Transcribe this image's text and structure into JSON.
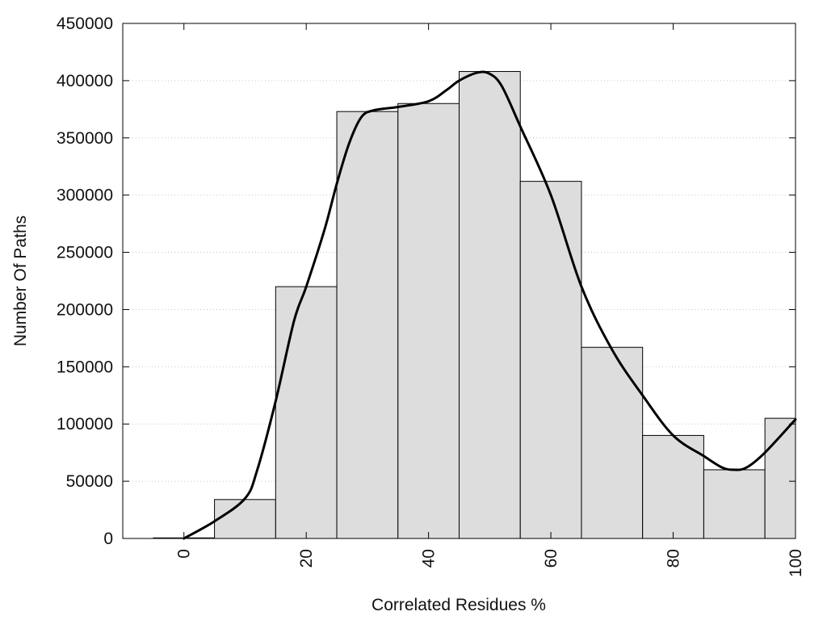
{
  "chart_data": {
    "type": "bar",
    "xlabel": "Correlated Residues %",
    "ylabel": "Number Of Paths",
    "xlim": [
      -10,
      100
    ],
    "ylim": [
      0,
      450000
    ],
    "grid": true,
    "x_ticks": [
      0,
      20,
      40,
      60,
      80,
      100
    ],
    "y_ticks": [
      0,
      50000,
      100000,
      150000,
      200000,
      250000,
      300000,
      350000,
      400000,
      450000
    ],
    "bars": [
      {
        "x0": -5,
        "x1": 5,
        "value": 500
      },
      {
        "x0": 5,
        "x1": 15,
        "value": 34000
      },
      {
        "x0": 15,
        "x1": 25,
        "value": 220000
      },
      {
        "x0": 25,
        "x1": 35,
        "value": 373000
      },
      {
        "x0": 35,
        "x1": 45,
        "value": 380000
      },
      {
        "x0": 45,
        "x1": 55,
        "value": 408000
      },
      {
        "x0": 55,
        "x1": 65,
        "value": 312000
      },
      {
        "x0": 65,
        "x1": 75,
        "value": 167000
      },
      {
        "x0": 75,
        "x1": 85,
        "value": 90000
      },
      {
        "x0": 85,
        "x1": 95,
        "value": 60000
      },
      {
        "x0": 95,
        "x1": 100,
        "value": 105000
      }
    ],
    "curve": {
      "x": [
        0,
        5,
        10,
        12,
        15,
        18,
        20,
        23,
        25,
        27,
        29,
        31,
        35,
        40,
        43,
        45,
        48,
        50,
        52,
        55,
        60,
        65,
        70,
        75,
        80,
        85,
        88,
        90,
        92,
        95,
        100
      ],
      "y": [
        0,
        15000,
        35000,
        60000,
        120000,
        190000,
        220000,
        270000,
        310000,
        345000,
        368000,
        374000,
        377000,
        382000,
        392000,
        400000,
        407000,
        406000,
        395000,
        360000,
        300000,
        220000,
        165000,
        125000,
        90000,
        72000,
        62000,
        60000,
        62000,
        75000,
        104000
      ]
    }
  }
}
